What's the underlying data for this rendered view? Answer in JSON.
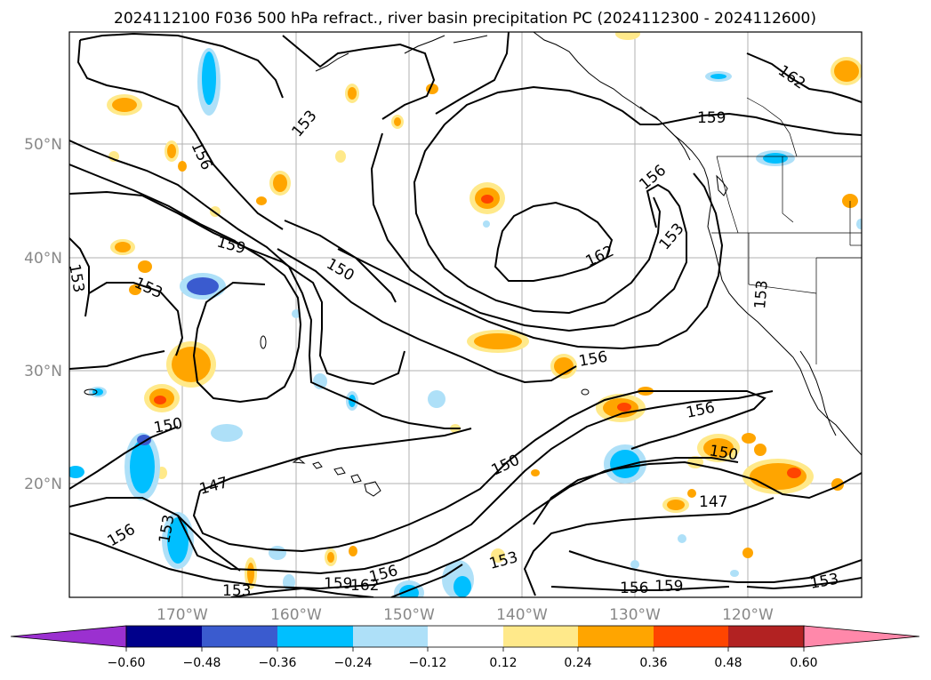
{
  "title": "2024112100 F036 500 hPa refract., river basin precipitation PC (2024112300 - 2024112600)",
  "axes": {
    "lat_labels": [
      "50°N",
      "40°N",
      "30°N",
      "20°N"
    ],
    "lon_labels": [
      "170°W",
      "160°W",
      "150°W",
      "140°W",
      "130°W",
      "120°W"
    ]
  },
  "contour_labels": [
    "162",
    "159",
    "156",
    "153",
    "150",
    "147"
  ],
  "colorbar": {
    "ticks": [
      "−0.60",
      "−0.48",
      "−0.36",
      "−0.24",
      "−0.12",
      "0.12",
      "0.24",
      "0.36",
      "0.48",
      "0.60"
    ],
    "colors": [
      "#9b30d0",
      "#00008b",
      "#3a5bcf",
      "#00bfff",
      "#aee0f8",
      "#ffffff",
      "#ffe98a",
      "#ffa500",
      "#ff4500",
      "#b22222",
      "#ff88aa"
    ]
  },
  "colors": {
    "grid": "#b0b0b0",
    "contour": "#000000",
    "axis_label": "#888888"
  }
}
